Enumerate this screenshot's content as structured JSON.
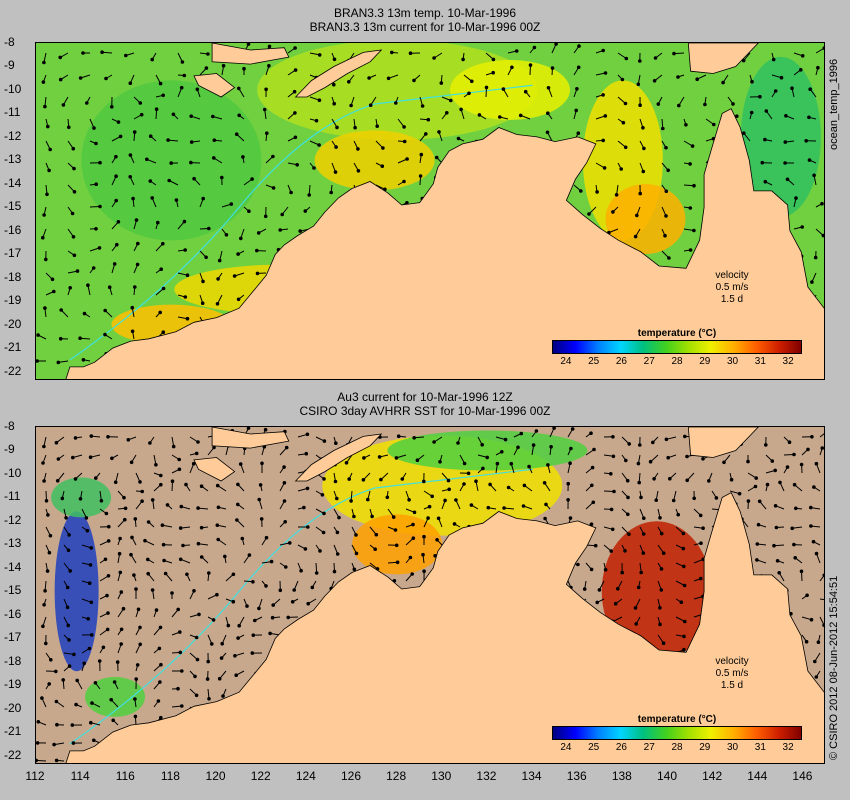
{
  "top_panel": {
    "title_line1": "BRAN3.3 13m temp. 10-Mar-1996",
    "title_line2": "BRAN3.3 13m current for 10-Mar-1996 00Z",
    "side_label": "ocean_temp_1996",
    "velocity_label": "velocity",
    "velocity_speed": "0.5 m/s",
    "velocity_time": "1.5 d",
    "colorbar_title": "temperature (°C)"
  },
  "bottom_panel": {
    "title_line1": "Au3 current for 10-Mar-1996 12Z",
    "title_line2": "CSIRO 3day AVHRR SST for 10-Mar-1996 00Z",
    "side_label": "© CSIRO 2012   08-Jun-2012 15:54:51",
    "velocity_label": "velocity",
    "velocity_speed": "0.5 m/s",
    "velocity_time": "1.5 d",
    "colorbar_title": "temperature (°C)"
  },
  "map_data": {
    "lat_ticks": [
      "-8",
      "-9",
      "-10",
      "-11",
      "-12",
      "-13",
      "-14",
      "-15",
      "-16",
      "-17",
      "-18",
      "-19",
      "-20",
      "-21",
      "-22"
    ],
    "lon_ticks": [
      "112",
      "114",
      "116",
      "118",
      "120",
      "122",
      "124",
      "126",
      "128",
      "130",
      "132",
      "134",
      "136",
      "138",
      "140",
      "142",
      "144",
      "146"
    ],
    "lat_range": [
      -22.4,
      -8
    ],
    "lon_range": [
      112,
      147
    ],
    "colorbar_ticks": [
      "24",
      "25",
      "26",
      "27",
      "28",
      "29",
      "30",
      "31",
      "32"
    ],
    "colorbar_range": [
      23.5,
      32.5
    ]
  },
  "colors": {
    "background": "#c0c0c0",
    "land": "#ffcc99",
    "no_data": "#c8a88c",
    "arrow": "#000000",
    "isobath": "#40e0e0"
  }
}
